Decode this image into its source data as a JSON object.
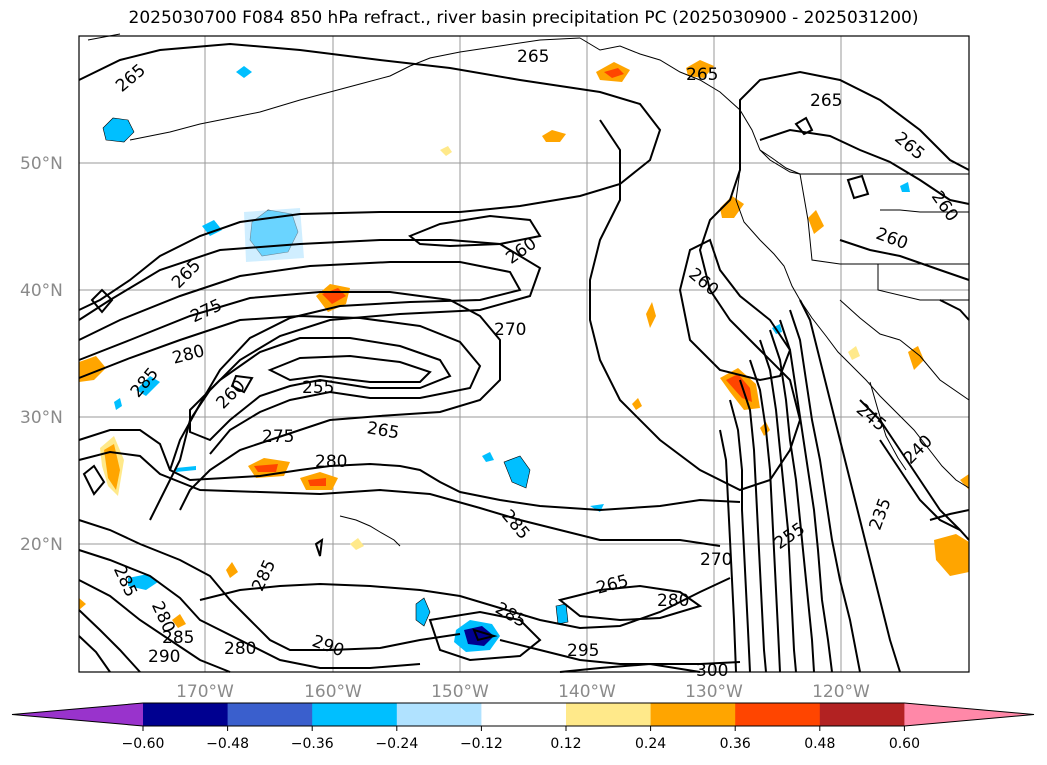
{
  "title": "2025030700 F084 850 hPa refract., river basin precipitation PC (2025030900 - 2025031200)",
  "lat_labels": [
    "50°N",
    "40°N",
    "30°N",
    "20°N"
  ],
  "lon_labels": [
    "170°W",
    "160°W",
    "150°W",
    "140°W",
    "130°W",
    "120°W"
  ],
  "contour_labels": [
    "265",
    "265",
    "265",
    "265",
    "265",
    "260",
    "260",
    "260",
    "265",
    "275",
    "280",
    "285",
    "270",
    "255",
    "260",
    "275",
    "265",
    "280",
    "285",
    "285",
    "285",
    "280",
    "285",
    "290",
    "280",
    "290",
    "285",
    "295",
    "280",
    "265",
    "270",
    "255",
    "245",
    "240",
    "235",
    "300",
    "260"
  ],
  "colorbar": {
    "ticks": [
      "−0.60",
      "−0.48",
      "−0.36",
      "−0.24",
      "−0.12",
      "0.12",
      "0.24",
      "0.36",
      "0.48",
      "0.60"
    ],
    "colors": [
      "#9933cc",
      "#000090",
      "#3a5fcd",
      "#00bfff",
      "#b0e2ff",
      "#ffffff",
      "#ffe98a",
      "#ffa500",
      "#ff4500",
      "#b22222",
      "#ff88a8"
    ],
    "extend": "both"
  },
  "colors": {
    "grid": "#9a9a9a",
    "axis_label": "#8a8a8a"
  },
  "feature_names": [
    "coastline",
    "state-borders",
    "refractivity-contours",
    "precipitation-pc-shading"
  ]
}
